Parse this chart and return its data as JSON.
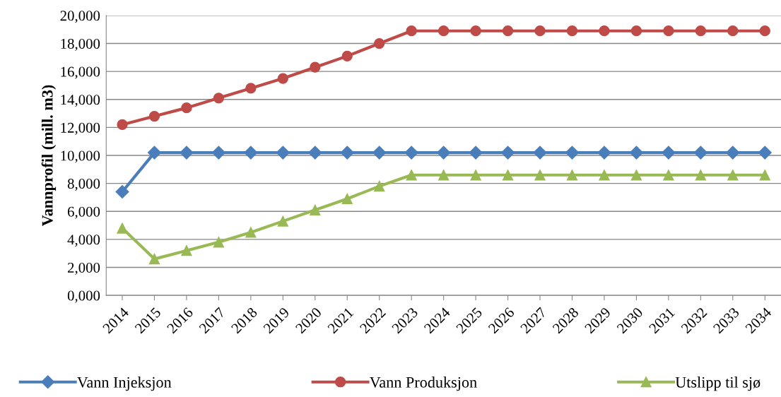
{
  "chart_data": {
    "type": "line",
    "ylabel": "Vannprofil (mill. m3)",
    "categories": [
      "2014",
      "2015",
      "2016",
      "2017",
      "2018",
      "2019",
      "2020",
      "2021",
      "2022",
      "2023",
      "2024",
      "2025",
      "2026",
      "2027",
      "2028",
      "2029",
      "2030",
      "2031",
      "2032",
      "2033",
      "2034"
    ],
    "series": [
      {
        "name": "Vann Injeksjon",
        "color": "#4a7ebb",
        "marker": "diamond",
        "values": [
          7400,
          10200,
          10200,
          10200,
          10200,
          10200,
          10200,
          10200,
          10200,
          10200,
          10200,
          10200,
          10200,
          10200,
          10200,
          10200,
          10200,
          10200,
          10200,
          10200,
          10200
        ]
      },
      {
        "name": "Vann Produksjon",
        "color": "#be4b48",
        "marker": "circle",
        "values": [
          12200,
          12800,
          13400,
          14100,
          14800,
          15500,
          16300,
          17100,
          18000,
          18900,
          18900,
          18900,
          18900,
          18900,
          18900,
          18900,
          18900,
          18900,
          18900,
          18900,
          18900
        ]
      },
      {
        "name": "Utslipp til sjø",
        "color": "#98b954",
        "marker": "triangle",
        "values": [
          4800,
          2600,
          3200,
          3800,
          4500,
          5300,
          6100,
          6900,
          7800,
          8600,
          8600,
          8600,
          8600,
          8600,
          8600,
          8600,
          8600,
          8600,
          8600,
          8600,
          8600
        ]
      }
    ],
    "ylim": [
      0,
      20000
    ],
    "yticks": [
      {
        "value": 0,
        "label": "0,000"
      },
      {
        "value": 2000,
        "label": "2,000"
      },
      {
        "value": 4000,
        "label": "4,000"
      },
      {
        "value": 6000,
        "label": "6,000"
      },
      {
        "value": 8000,
        "label": "8,000"
      },
      {
        "value": 10000,
        "label": "10,000"
      },
      {
        "value": 12000,
        "label": "12,000"
      },
      {
        "value": 14000,
        "label": "14,000"
      },
      {
        "value": 16000,
        "label": "16,000"
      },
      {
        "value": 18000,
        "label": "18,000"
      },
      {
        "value": 20000,
        "label": "20,000"
      }
    ],
    "grid": "y",
    "legend": "bottom",
    "line_style": "solid"
  }
}
